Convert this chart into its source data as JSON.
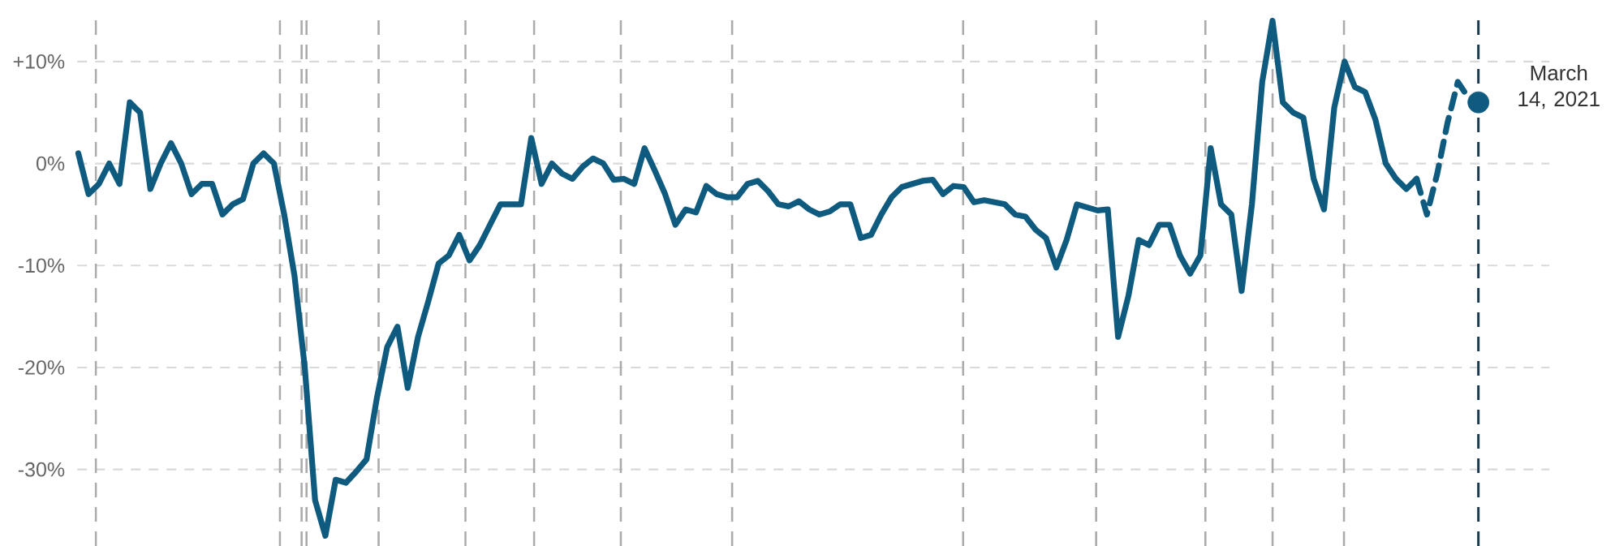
{
  "chart_data": {
    "type": "line",
    "categories": [
      null,
      null,
      null,
      null,
      null,
      null,
      null,
      null,
      null,
      null,
      null,
      null,
      null,
      null,
      null,
      null,
      null,
      null,
      null,
      null,
      null,
      null,
      null,
      null,
      null,
      null,
      null,
      null,
      null,
      null,
      null,
      null,
      null,
      null,
      null,
      null,
      null,
      null,
      null,
      null,
      null,
      null,
      null,
      null,
      null,
      null,
      null,
      null,
      null,
      null,
      null,
      null,
      null,
      null,
      null,
      null,
      null,
      null,
      null,
      null,
      null,
      null,
      null,
      null,
      null,
      null,
      null,
      null,
      null,
      null,
      null,
      null,
      null,
      null,
      null,
      null,
      null,
      null,
      null,
      null,
      null,
      null,
      null,
      null,
      null,
      null,
      null,
      null,
      null,
      null,
      null,
      null,
      null,
      null,
      null,
      null,
      null,
      null,
      null,
      null,
      null,
      null,
      null,
      null,
      null,
      null,
      null,
      null,
      null,
      null,
      null,
      null,
      null,
      null,
      null,
      null,
      null,
      null,
      null,
      null,
      null,
      null,
      null,
      null,
      null,
      null,
      null,
      null,
      null,
      null,
      null,
      null,
      null,
      null,
      null,
      null,
      null
    ],
    "series": [
      {
        "color": "#0f5b7f",
        "line_style": "solid",
        "values": [
          1,
          -3,
          -2,
          0,
          -2,
          6,
          5,
          -2.5,
          0,
          2,
          0,
          -3,
          -2,
          -2,
          -5,
          -4,
          -3.5,
          0,
          1,
          0,
          -5,
          -11,
          -20,
          -33,
          -36.5,
          -31,
          -31.3,
          -30.2,
          -29,
          -23,
          -18,
          -16,
          -22,
          -17,
          -13.5,
          -9.8,
          -9,
          -7,
          -9.5,
          -8,
          -6,
          -4,
          -4,
          -4,
          2.5,
          -2,
          0,
          -1,
          -1.5,
          -0.3,
          0.5,
          0,
          -1.6,
          -1.5,
          -2,
          1.5,
          -0.7,
          -3,
          -6,
          -4.5,
          -4.8,
          -2.2,
          -3,
          -3.3,
          -3.3,
          -2,
          -1.7,
          -2.7,
          -4,
          -4.2,
          -3.7,
          -4.5,
          -5,
          -4.7,
          -4,
          -4,
          -7.3,
          -7,
          -5,
          -3.3,
          -2.3,
          -2,
          -1.7,
          -1.6,
          -3,
          -2.2,
          -2.3,
          -3.8,
          -3.6,
          -3.8,
          -4,
          -5,
          -5.2,
          -6.5,
          -7.3,
          -10.2,
          -7.5,
          -4,
          -4.3,
          -4.6,
          -4.5,
          -17,
          -13,
          -7.5,
          -8,
          -6,
          -6,
          -9,
          -10.8,
          -9,
          1.5,
          -4,
          -5,
          -12.5,
          -4,
          8,
          14,
          6,
          5,
          4.5,
          -1.5,
          -4.5,
          5.5,
          10,
          7.5,
          7,
          4.3,
          0,
          -1.5,
          -2.5,
          -1.5,
          null,
          null,
          null,
          null,
          null,
          null
        ]
      },
      {
        "color": "#0f5b7f",
        "line_style": "dashed",
        "values": [
          null,
          null,
          null,
          null,
          null,
          null,
          null,
          null,
          null,
          null,
          null,
          null,
          null,
          null,
          null,
          null,
          null,
          null,
          null,
          null,
          null,
          null,
          null,
          null,
          null,
          null,
          null,
          null,
          null,
          null,
          null,
          null,
          null,
          null,
          null,
          null,
          null,
          null,
          null,
          null,
          null,
          null,
          null,
          null,
          null,
          null,
          null,
          null,
          null,
          null,
          null,
          null,
          null,
          null,
          null,
          null,
          null,
          null,
          null,
          null,
          null,
          null,
          null,
          null,
          null,
          null,
          null,
          null,
          null,
          null,
          null,
          null,
          null,
          null,
          null,
          null,
          null,
          null,
          null,
          null,
          null,
          null,
          null,
          null,
          null,
          null,
          null,
          null,
          null,
          null,
          null,
          null,
          null,
          null,
          null,
          null,
          null,
          null,
          null,
          null,
          null,
          null,
          null,
          null,
          null,
          null,
          null,
          null,
          null,
          null,
          null,
          null,
          null,
          null,
          null,
          null,
          null,
          null,
          null,
          null,
          null,
          null,
          null,
          null,
          null,
          null,
          null,
          null,
          null,
          null,
          -1.5,
          -5,
          -1,
          4,
          8,
          6.5,
          null
        ]
      },
      {
        "type": "scatter",
        "color": "#0f5b7f",
        "marker": "circle",
        "values": [
          null,
          null,
          null,
          null,
          null,
          null,
          null,
          null,
          null,
          null,
          null,
          null,
          null,
          null,
          null,
          null,
          null,
          null,
          null,
          null,
          null,
          null,
          null,
          null,
          null,
          null,
          null,
          null,
          null,
          null,
          null,
          null,
          null,
          null,
          null,
          null,
          null,
          null,
          null,
          null,
          null,
          null,
          null,
          null,
          null,
          null,
          null,
          null,
          null,
          null,
          null,
          null,
          null,
          null,
          null,
          null,
          null,
          null,
          null,
          null,
          null,
          null,
          null,
          null,
          null,
          null,
          null,
          null,
          null,
          null,
          null,
          null,
          null,
          null,
          null,
          null,
          null,
          null,
          null,
          null,
          null,
          null,
          null,
          null,
          null,
          null,
          null,
          null,
          null,
          null,
          null,
          null,
          null,
          null,
          null,
          null,
          null,
          null,
          null,
          null,
          null,
          null,
          null,
          null,
          null,
          null,
          null,
          null,
          null,
          null,
          null,
          null,
          null,
          null,
          null,
          null,
          null,
          null,
          null,
          null,
          null,
          null,
          null,
          null,
          null,
          null,
          null,
          null,
          null,
          null,
          null,
          null,
          null,
          null,
          null,
          null,
          6
        ]
      }
    ],
    "ylim": [
      -37.5,
      15
    ],
    "yticks": [
      {
        "value": 10,
        "label": "+10%"
      },
      {
        "value": 0,
        "label": "0%"
      },
      {
        "value": -10,
        "label": "-10%"
      },
      {
        "value": -20,
        "label": "-20%"
      },
      {
        "value": -30,
        "label": "-30%"
      }
    ],
    "grid": "y",
    "tick_labels": "y",
    "annotations": [
      "March 14, 2021"
    ]
  }
}
